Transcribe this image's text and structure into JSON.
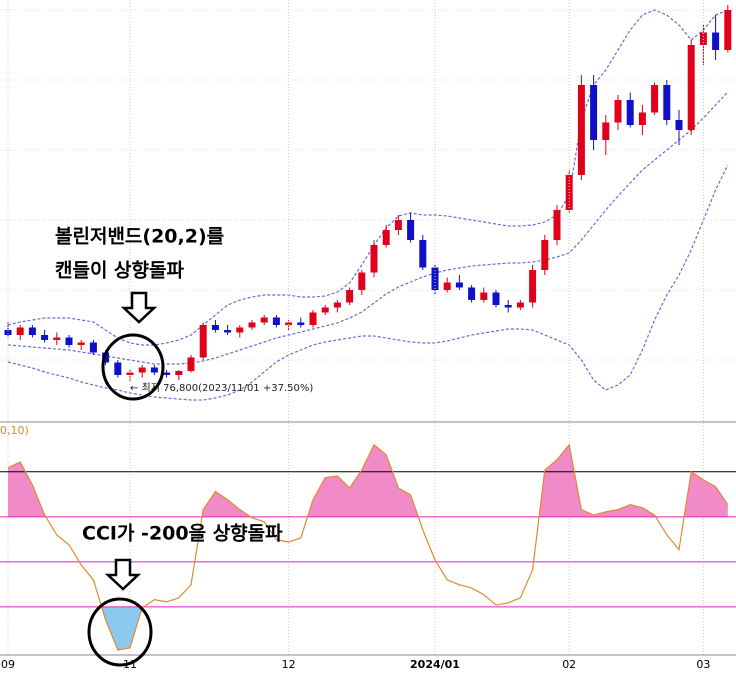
{
  "chart_data": [
    {
      "type": "candlestick",
      "ylim": [
        69000,
        153000
      ],
      "grid_lines": [
        151000,
        137000,
        123000,
        109000,
        95000,
        81000
      ],
      "up_color": "#e0001a",
      "down_color": "#1010c8",
      "ohlc": [
        [
          87000,
          88500,
          85500,
          86000
        ],
        [
          86000,
          88000,
          85000,
          87500
        ],
        [
          87500,
          88000,
          85500,
          86000
        ],
        [
          86000,
          87000,
          84500,
          85000
        ],
        [
          85000,
          86500,
          84000,
          85500
        ],
        [
          85500,
          86000,
          83500,
          84000
        ],
        [
          84000,
          85000,
          83000,
          84500
        ],
        [
          84500,
          85000,
          82000,
          82500
        ],
        [
          82500,
          83000,
          80000,
          80500
        ],
        [
          80500,
          81000,
          77500,
          78000
        ],
        [
          78000,
          79000,
          76800,
          78500
        ],
        [
          78500,
          80000,
          77500,
          79500
        ],
        [
          79500,
          80000,
          78000,
          78500
        ],
        [
          78500,
          79000,
          77500,
          78000
        ],
        [
          78000,
          79000,
          77000,
          78800
        ],
        [
          78800,
          82000,
          78500,
          81500
        ],
        [
          81500,
          88500,
          81000,
          88000
        ],
        [
          88000,
          89000,
          86500,
          87000
        ],
        [
          87000,
          88000,
          86000,
          86500
        ],
        [
          86500,
          88000,
          85500,
          87500
        ],
        [
          87500,
          89000,
          87000,
          88500
        ],
        [
          88500,
          90000,
          88000,
          89500
        ],
        [
          89500,
          90000,
          87500,
          88000
        ],
        [
          88000,
          89000,
          87000,
          88500
        ],
        [
          88500,
          89500,
          87500,
          88000
        ],
        [
          88000,
          91000,
          87500,
          90500
        ],
        [
          90500,
          92000,
          90000,
          91500
        ],
        [
          91500,
          93000,
          90500,
          92500
        ],
        [
          92500,
          95500,
          92000,
          95000
        ],
        [
          95000,
          99000,
          94000,
          98500
        ],
        [
          98500,
          105000,
          97500,
          104000
        ],
        [
          104000,
          108000,
          103500,
          107000
        ],
        [
          107000,
          110000,
          106000,
          109000
        ],
        [
          109000,
          110500,
          104500,
          105000
        ],
        [
          105000,
          106000,
          99000,
          99500
        ],
        [
          99500,
          100000,
          94000,
          95000
        ],
        [
          95000,
          97500,
          94500,
          96500
        ],
        [
          96500,
          98000,
          95000,
          95500
        ],
        [
          95500,
          96000,
          92500,
          93000
        ],
        [
          93000,
          95500,
          92500,
          94500
        ],
        [
          94500,
          95000,
          91500,
          92000
        ],
        [
          92000,
          93000,
          90500,
          91500
        ],
        [
          91500,
          93000,
          91000,
          92500
        ],
        [
          92500,
          100000,
          91500,
          99000
        ],
        [
          99000,
          106000,
          98000,
          105000
        ],
        [
          105000,
          112000,
          104000,
          111000
        ],
        [
          111000,
          119000,
          110500,
          118000
        ],
        [
          118000,
          138000,
          117000,
          136000
        ],
        [
          136000,
          138000,
          123000,
          125000
        ],
        [
          125000,
          130000,
          122000,
          128500
        ],
        [
          128500,
          134000,
          127000,
          133000
        ],
        [
          133000,
          134500,
          127500,
          128000
        ],
        [
          128000,
          132000,
          126000,
          130500
        ],
        [
          130500,
          136500,
          130000,
          136000
        ],
        [
          136000,
          137000,
          128000,
          129000
        ],
        [
          129000,
          131000,
          124000,
          127000
        ],
        [
          127000,
          145000,
          126000,
          144000
        ],
        [
          144000,
          148000,
          140000,
          146500
        ],
        [
          146500,
          150000,
          141000,
          143000
        ],
        [
          143000,
          152000,
          142500,
          151000
        ]
      ],
      "series": [
        {
          "color": "#6a6ad8",
          "values": [
            88000,
            88600,
            89000,
            89400,
            89400,
            89400,
            89000,
            88600,
            87000,
            85400,
            84400,
            84000,
            84000,
            84400,
            85000,
            86000,
            88000,
            90000,
            92000,
            93000,
            93600,
            94000,
            94000,
            94000,
            93600,
            93600,
            93800,
            94600,
            96400,
            100000,
            104000,
            107400,
            109800,
            110400,
            110000,
            110000,
            109800,
            109400,
            109000,
            108600,
            108200,
            107800,
            107800,
            108000,
            108600,
            110000,
            114000,
            129000,
            136000,
            139000,
            143000,
            147000,
            150000,
            151000,
            150000,
            148000,
            145000,
            147000,
            150000,
            151000
          ]
        },
        {
          "color": "#6a6ad8",
          "values": [
            84000,
            83800,
            83600,
            83400,
            83200,
            83000,
            82600,
            82200,
            81800,
            81400,
            81000,
            80600,
            80200,
            80200,
            80200,
            80400,
            80800,
            81400,
            82200,
            83000,
            83800,
            84600,
            85400,
            86000,
            86600,
            87200,
            87800,
            88400,
            89400,
            90600,
            92400,
            94200,
            95600,
            96600,
            97600,
            98400,
            99000,
            99400,
            99800,
            100000,
            100200,
            100400,
            100400,
            100600,
            101000,
            101600,
            102400,
            105000,
            108000,
            111000,
            113800,
            116400,
            119000,
            121000,
            123000,
            125000,
            127000,
            129400,
            132000,
            134600
          ]
        },
        {
          "color": "#6a6ad8",
          "values": [
            80600,
            80000,
            79400,
            78600,
            78000,
            77400,
            76600,
            76000,
            75400,
            75000,
            74400,
            74000,
            73600,
            73400,
            73200,
            73000,
            73000,
            73400,
            74000,
            75000,
            76600,
            78600,
            80600,
            82000,
            83000,
            84000,
            84600,
            85000,
            85400,
            85800,
            85800,
            85400,
            85000,
            84600,
            84400,
            84400,
            84800,
            85400,
            86000,
            86400,
            86800,
            87200,
            87200,
            87000,
            86000,
            85000,
            84000,
            81000,
            77000,
            75000,
            76000,
            78000,
            83000,
            89000,
            94000,
            98000,
            103000,
            109000,
            115000,
            120000
          ]
        }
      ],
      "annotations": [
        "볼린저밴드(20,2)를",
        "캔들이 상향돌파"
      ],
      "low_label": "← 최저 76,800(2023/11/01   +37.50%)"
    },
    {
      "type": "line",
      "label": "0,10)",
      "ylim": [
        -207,
        304
      ],
      "levels": [
        {
          "value": 200,
          "color": "#000000"
        },
        {
          "value": 100,
          "color": "#e020c0"
        },
        {
          "value": 0,
          "color": "#e020c0"
        },
        {
          "value": -100,
          "color": "#e020c0"
        }
      ],
      "fill_above": {
        "value": 100,
        "color": "#f08ac8"
      },
      "fill_below": {
        "value": -100,
        "color": "#8cc8f0"
      },
      "categories": [
        "09",
        null,
        null,
        null,
        null,
        null,
        null,
        null,
        null,
        null,
        "11",
        null,
        null,
        null,
        null,
        null,
        null,
        null,
        null,
        null,
        null,
        null,
        null,
        "12",
        null,
        null,
        null,
        null,
        null,
        null,
        null,
        null,
        null,
        null,
        null,
        "2024/01",
        null,
        null,
        null,
        null,
        null,
        null,
        null,
        null,
        null,
        null,
        "02",
        null,
        null,
        null,
        null,
        null,
        null,
        null,
        null,
        null,
        null,
        "03",
        null,
        null
      ],
      "series": [
        {
          "color": "#e08a30",
          "values": [
            209,
            222,
            171,
            104,
            60,
            38,
            -7,
            -40,
            -129,
            -196,
            -191,
            -102,
            -84,
            -89,
            -80,
            -51,
            116,
            156,
            138,
            116,
            98,
            89,
            49,
            44,
            53,
            138,
            187,
            191,
            164,
            204,
            260,
            238,
            164,
            149,
            71,
            4,
            -40,
            -51,
            -58,
            -73,
            -96,
            -91,
            -80,
            -18,
            204,
            227,
            260,
            116,
            104,
            111,
            116,
            127,
            120,
            104,
            60,
            27,
            200,
            182,
            167,
            127
          ]
        }
      ],
      "annotations": [
        "CCI가 -200을 상향돌파"
      ]
    }
  ]
}
